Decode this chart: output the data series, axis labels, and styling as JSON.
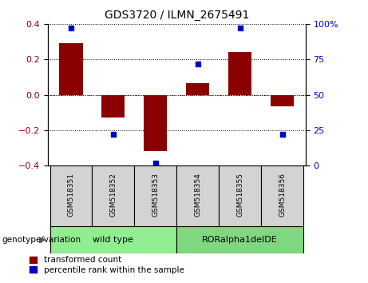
{
  "title": "GDS3720 / ILMN_2675491",
  "samples": [
    "GSM518351",
    "GSM518352",
    "GSM518353",
    "GSM518354",
    "GSM518355",
    "GSM518356"
  ],
  "transformed_count": [
    0.29,
    -0.13,
    -0.32,
    0.065,
    0.24,
    -0.065
  ],
  "percentile_rank": [
    97,
    22,
    2,
    72,
    97,
    22
  ],
  "groups": [
    {
      "label": "wild type",
      "samples": [
        0,
        1,
        2
      ],
      "color": "#90EE90"
    },
    {
      "label": "RORalpha1delDE",
      "samples": [
        3,
        4,
        5
      ],
      "color": "#7FD87F"
    }
  ],
  "group_label": "genotype/variation",
  "ylim_left": [
    -0.4,
    0.4
  ],
  "ylim_right": [
    0,
    100
  ],
  "yticks_left": [
    -0.4,
    -0.2,
    0,
    0.2,
    0.4
  ],
  "yticks_right": [
    0,
    25,
    50,
    75,
    100
  ],
  "bar_color": "#8B0000",
  "dot_color": "#0000CD",
  "hline_color": "#CC0000",
  "grid_color": "#000000",
  "legend_bar_label": "transformed count",
  "legend_dot_label": "percentile rank within the sample",
  "background_color": "#FFFFFF"
}
